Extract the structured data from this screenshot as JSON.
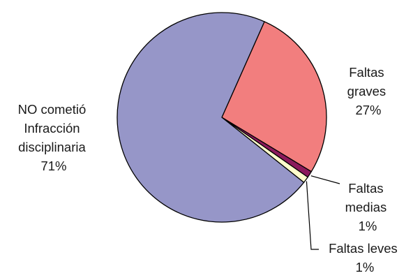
{
  "chart_data": {
    "type": "pie",
    "slices": [
      {
        "label_lines": [
          "Faltas",
          "graves"
        ],
        "percent_label": "27%",
        "value": 27,
        "color": "#f27e7e"
      },
      {
        "label_lines": [
          "Faltas",
          "medias"
        ],
        "percent_label": "1%",
        "value": 1,
        "color": "#8b1a5c"
      },
      {
        "label_lines": [
          "Faltas leves"
        ],
        "percent_label": "1%",
        "value": 1,
        "color": "#ffffcc"
      },
      {
        "label_lines": [
          "NO cometió",
          "Infracción",
          "disciplinaria"
        ],
        "percent_label": "71%",
        "value": 71,
        "color": "#9696c8"
      }
    ],
    "start_angle_deg": 24,
    "direction": "clockwise",
    "outline_color": "#000000"
  }
}
